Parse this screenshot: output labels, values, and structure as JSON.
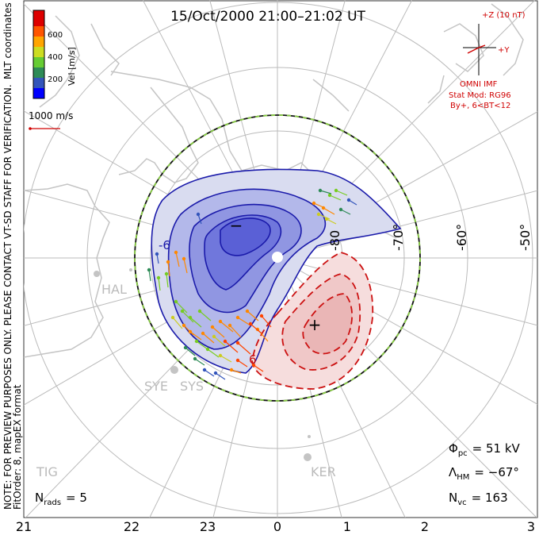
{
  "header": {
    "title": "15/Oct/2000 21:00–21:02 UT"
  },
  "colorbar": {
    "label": "Vel [m/s]",
    "coord_label": "MLT coordinates",
    "ticks": [
      "600",
      "400",
      "200"
    ],
    "colors": [
      "#0000ff",
      "#3355bb",
      "#2e8b57",
      "#66cc33",
      "#ccdd22",
      "#ffa500",
      "#ff5500",
      "#dd0000"
    ]
  },
  "scale": {
    "label": "1000 m/s"
  },
  "imf": {
    "z_label": "+Z (10 nT)",
    "y_label": "+Y",
    "source": "OMNI IMF",
    "model": "Stat Mod: RG96",
    "condition": "By+, 6<BT<12"
  },
  "notes": {
    "preview": "NOTE: FOR PREVIEW PURPOSES ONLY. PLEASE CONTACT VT-SD STAFF FOR VERIFICATION.",
    "fit": "FitOrder: 8, mapEX format"
  },
  "stations": [
    "HAL",
    "SYE",
    "SYS",
    "TIG",
    "KER"
  ],
  "contour_labels": {
    "neg": "-6",
    "pos": "6"
  },
  "lat_labels": [
    "-50°",
    "-60°",
    "-70°",
    "-80"
  ],
  "mlt_labels": [
    "21",
    "22",
    "23",
    "0",
    "1",
    "2",
    "3"
  ],
  "stats": {
    "phi_pc_symbol": "Φ",
    "phi_pc_sub": "pc",
    "phi_pc_value": "= 51 kV",
    "lambda_hm_symbol": "Λ",
    "lambda_hm_sub": "HM",
    "lambda_hm_value": "= −67°",
    "n_vc_symbol": "N",
    "n_vc_sub": "vc",
    "n_vc_value": "= 163",
    "n_rads_symbol": "N",
    "n_rads_sub": "rads",
    "n_rads_value": "= 5"
  },
  "markers": {
    "min": "−",
    "max": "+"
  },
  "colors": {
    "neg_contour": "#1a1aaa",
    "pos_contour": "#cc1111",
    "neg_fill": "#3a3ad0",
    "pos_fill": "#e05050",
    "imf_text": "#d00000",
    "boundary_dash": "#88cc44",
    "map_line": "#c4c4c4"
  }
}
